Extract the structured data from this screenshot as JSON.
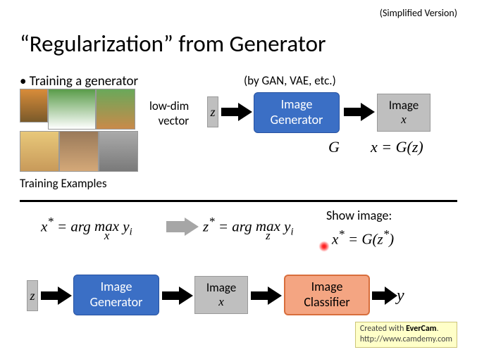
{
  "header": {
    "simplified": "(Simplified Version)",
    "title": "“Regularization” from Generator"
  },
  "section1": {
    "bullet": "Training a generator",
    "gan_note": "(by GAN, VAE, etc.)",
    "lowdim_line1": "low-dim",
    "lowdim_line2": "vector",
    "z_label": "z",
    "gen_line1": "Image",
    "gen_line2": "Generator",
    "img_line1": "Image",
    "img_x": "x",
    "g_label": "G",
    "xgz": "x = G(z)",
    "training_examples": "Training Examples"
  },
  "section2": {
    "eq1_html": "x<span class='sup'>*</span> = arg <span class='under'>max<span class='below italic-x'>x</span></span> y<span class='sub'>i</span>",
    "eq2_html": "z<span class='sup'>*</span> = arg <span class='under'>max<span class='below italic-x'>z</span></span> y<span class='sub'>i</span>",
    "showimg": "Show image:",
    "eq3_html": "x<span class='sup'>*</span> = G(z<span class='sup'>*</span>)",
    "z_label": "z",
    "gen_line1": "Image",
    "gen_line2": "Generator",
    "img_line1": "Image",
    "img_x": "x",
    "classifier_line1": "Image",
    "classifier_line2": "Classifier",
    "y_out": "y"
  },
  "colors": {
    "blue_box": "#3b6fc5",
    "blue_border": "#2651a0",
    "gray_box": "#bfbfbf",
    "classifier_fill": "#f4a582",
    "classifier_border": "#d86e3c",
    "arrow": "#000000",
    "gray_arrow": "#a6a6a6",
    "red_dot": "#ff2020"
  },
  "footer": {
    "evercam_line1_pre": "Created with ",
    "evercam_bold": "EverCam",
    "evercam_line1_post": ".",
    "evercam_line2": "http://www.camdemy.com"
  }
}
